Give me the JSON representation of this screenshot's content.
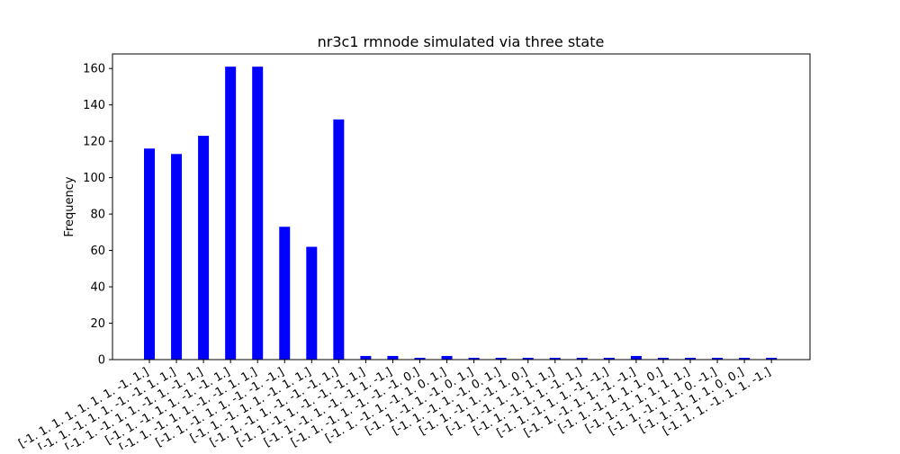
{
  "chart_data": {
    "type": "bar",
    "title": "nr3c1 rmnode simulated via three state",
    "xlabel": "",
    "ylabel": "Frequency",
    "ylim": [
      0,
      168
    ],
    "yticks": [
      0,
      20,
      40,
      60,
      80,
      100,
      120,
      140,
      160
    ],
    "grid": false,
    "bar_color": "#0000ff",
    "categories": [
      "[-1. 1. 1. 1. 1. 1. 1. -1. 1.]",
      "[-1. 1. -1. 1. 1. -1. -1. 1. 1.]",
      "[-1. 1. -1. 1. 1. -1. 1. -1. 1.]",
      "[-1. 1. -1. 1. 1. -1. -1. 1.]",
      "[-1. 1. -1. 1. 1. -1. -1. 1. 1.]",
      "[-1. 1. -1. 1. 1. -1. -1. -1.]",
      "[-1. 1. -1. 1. 1. -1. 1. 1.]",
      "[-1. 1. -1. 1. -1. -1. -1. 1.]",
      "[-1. 1. -1. 1. -1. -1. -1. 1.]",
      "[-1. 1. -1. 1. -1. -1. 1. -1.]",
      "[-1. 1. -1. 1. -1. -1. -1. 0.]",
      "[-1. 1. -1. 1. -1. 1. 0. 1.]",
      "[-1. 1. -1. 1. -1. 0. 1.]",
      "[-1. 1. -1. 1. -1. 0. 1.]",
      "[-1. 1. -1. 1. -1. 1. 0.]",
      "[-1. 1. -1. 1. -1. 1. 1.]",
      "[-1. 1. -1. 1. 1. -1. 1.]",
      "[-1. 1. -1. 1. 1. -1. -1.]",
      "[-1. 1. -1. 1. 1. -1. -1.]",
      "[-1. 1. -1. 1. 1. 1. 0.]",
      "[-1. 1. -1. 1. 1. 1. 1.]",
      "[-1. 1. -1. 1. 1. 0. -1.]",
      "[-1. 1. -1. 1. 1. 0. 0.]",
      "[-1. 1. 1. -1. 1. 1. -1.]"
    ],
    "values": [
      116,
      113,
      123,
      161,
      161,
      73,
      62,
      132,
      2,
      2,
      1,
      2,
      1,
      1,
      1,
      1,
      1,
      1,
      2,
      1,
      1,
      1,
      1,
      1
    ]
  }
}
